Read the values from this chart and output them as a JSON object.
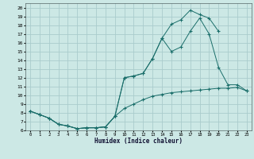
{
  "xlabel": "Humidex (Indice chaleur)",
  "bg_color": "#cce8e5",
  "grid_color": "#aacccc",
  "line_color": "#1a6e6a",
  "xlim": [
    -0.5,
    23.5
  ],
  "ylim": [
    6,
    20.5
  ],
  "xticks": [
    0,
    1,
    2,
    3,
    4,
    5,
    6,
    7,
    8,
    9,
    10,
    11,
    12,
    13,
    14,
    15,
    16,
    17,
    18,
    19,
    20,
    21,
    22,
    23
  ],
  "yticks": [
    6,
    7,
    8,
    9,
    10,
    11,
    12,
    13,
    14,
    15,
    16,
    17,
    18,
    19,
    20
  ],
  "line1_x": [
    0,
    1,
    2,
    3,
    4,
    5,
    6,
    7,
    8,
    9,
    10,
    11,
    12,
    13,
    14,
    15,
    16,
    17,
    18,
    19,
    20,
    21,
    22,
    23
  ],
  "line1_y": [
    8.2,
    7.8,
    7.4,
    6.7,
    6.5,
    6.2,
    6.3,
    6.3,
    6.4,
    7.6,
    8.5,
    9.0,
    9.5,
    9.9,
    10.1,
    10.3,
    10.4,
    10.5,
    10.6,
    10.7,
    10.8,
    10.8,
    10.9,
    10.5
  ],
  "line2_x": [
    0,
    1,
    2,
    3,
    4,
    5,
    6,
    7,
    8,
    9,
    10,
    11,
    12,
    13,
    14,
    15,
    16,
    17,
    18,
    19,
    20
  ],
  "line2_y": [
    8.2,
    7.8,
    7.4,
    6.7,
    6.5,
    6.2,
    6.3,
    6.3,
    6.4,
    7.6,
    12.0,
    12.2,
    12.5,
    14.2,
    16.5,
    18.1,
    18.6,
    19.7,
    19.2,
    18.8,
    17.3
  ],
  "line3_x": [
    0,
    1,
    2,
    3,
    4,
    5,
    6,
    7,
    8,
    9,
    10,
    11,
    12,
    13,
    14,
    15,
    16,
    17,
    18,
    19,
    20,
    21,
    22,
    23
  ],
  "line3_y": [
    8.2,
    7.8,
    7.4,
    6.7,
    6.5,
    6.2,
    6.3,
    6.3,
    6.4,
    7.6,
    12.0,
    12.2,
    12.5,
    14.2,
    16.5,
    15.0,
    15.5,
    17.3,
    18.8,
    17.0,
    13.2,
    11.2,
    11.2,
    10.5
  ]
}
